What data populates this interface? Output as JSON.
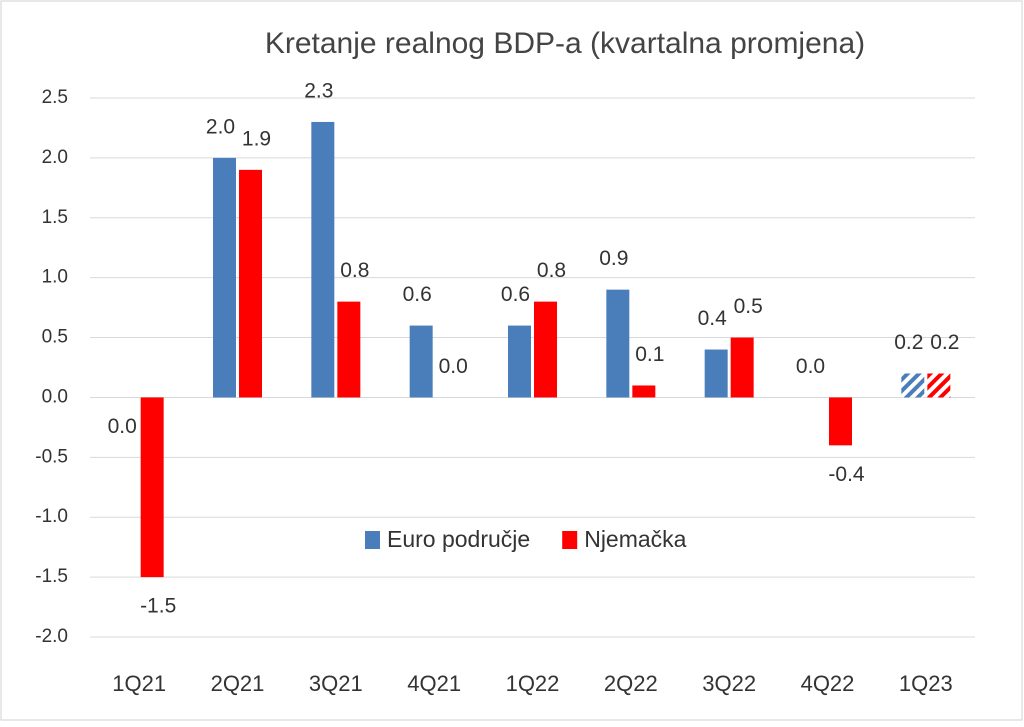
{
  "chart_data": {
    "type": "bar",
    "title": "Kretanje realnog BDP-a (kvartalna promjena)",
    "categories": [
      "1Q21",
      "2Q21",
      "3Q21",
      "4Q21",
      "1Q22",
      "2Q22",
      "3Q22",
      "4Q22",
      "1Q23"
    ],
    "series": [
      {
        "name": "Euro područje",
        "color": "#4a7ebb",
        "values": [
          0,
          2,
          2.3,
          0.6,
          0.6,
          0.9,
          0.4,
          0,
          0.2
        ],
        "value_labels": [
          "0.0",
          "2.0",
          "2.3",
          "0.6",
          "0.6",
          "0.9",
          "0.4",
          "0.0",
          "0.2"
        ]
      },
      {
        "name": "Njemačka",
        "color": "#ff0000",
        "values": [
          -1.5,
          1.9,
          0.8,
          0,
          0.8,
          0.1,
          0.5,
          -0.4,
          0.2
        ],
        "value_labels": [
          "-1.5",
          "1.9",
          "0.8",
          "0.0",
          "0.8",
          "0.1",
          "0.5",
          "-0.4",
          "0.2"
        ]
      }
    ],
    "ylim": [
      -2,
      2.5
    ],
    "yticks": [
      {
        "value": -2,
        "label": "-2.0"
      },
      -1.5,
      {
        "value": -1,
        "label": "-1.0"
      },
      -0.5,
      {
        "value": 0,
        "label": "0.0"
      },
      0.5,
      {
        "value": 1,
        "label": "1.0"
      },
      1.5,
      {
        "value": 2,
        "label": "2.0"
      },
      2.5
    ],
    "grid": true,
    "hatched_from_index": 8
  }
}
